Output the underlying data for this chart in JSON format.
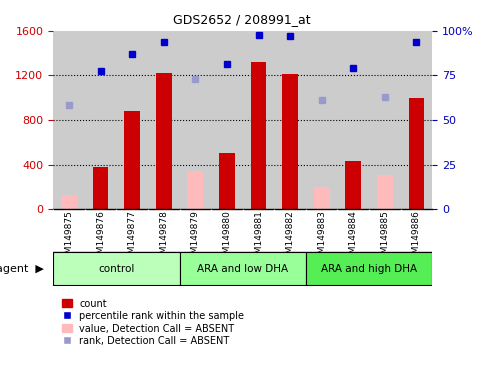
{
  "title": "GDS2652 / 208991_at",
  "samples": [
    "GSM149875",
    "GSM149876",
    "GSM149877",
    "GSM149878",
    "GSM149879",
    "GSM149880",
    "GSM149881",
    "GSM149882",
    "GSM149883",
    "GSM149884",
    "GSM149885",
    "GSM149886"
  ],
  "groups": [
    {
      "label": "control",
      "start": 0,
      "end": 3,
      "color": "#bbffbb"
    },
    {
      "label": "ARA and low DHA",
      "start": 4,
      "end": 7,
      "color": "#99ff99"
    },
    {
      "label": "ARA and high DHA",
      "start": 8,
      "end": 11,
      "color": "#55ee55"
    }
  ],
  "bar_present_color": "#cc0000",
  "bar_absent_color": "#ffbbbb",
  "dot_present_color": "#0000cc",
  "dot_absent_color": "#9999cc",
  "counts": [
    null,
    380,
    880,
    1220,
    null,
    500,
    1320,
    1210,
    null,
    430,
    null,
    1000
  ],
  "counts_absent": [
    130,
    null,
    null,
    null,
    340,
    null,
    null,
    null,
    200,
    null,
    310,
    null
  ],
  "percentile_present": [
    null,
    1240,
    1390,
    1500,
    null,
    1300,
    1560,
    1555,
    null,
    1270,
    null,
    1500
  ],
  "percentile_absent": [
    930,
    null,
    null,
    null,
    1165,
    null,
    null,
    null,
    975,
    null,
    1010,
    null
  ],
  "ylim_left": [
    0,
    1600
  ],
  "ylim_right": [
    0,
    100
  ],
  "yticks_left": [
    0,
    400,
    800,
    1200,
    1600
  ],
  "yticks_right": [
    0,
    25,
    50,
    75,
    100
  ],
  "ylabel_left_color": "#cc0000",
  "ylabel_right_color": "#0000bb",
  "bg_xaxis": "#cccccc",
  "bar_width": 0.5
}
